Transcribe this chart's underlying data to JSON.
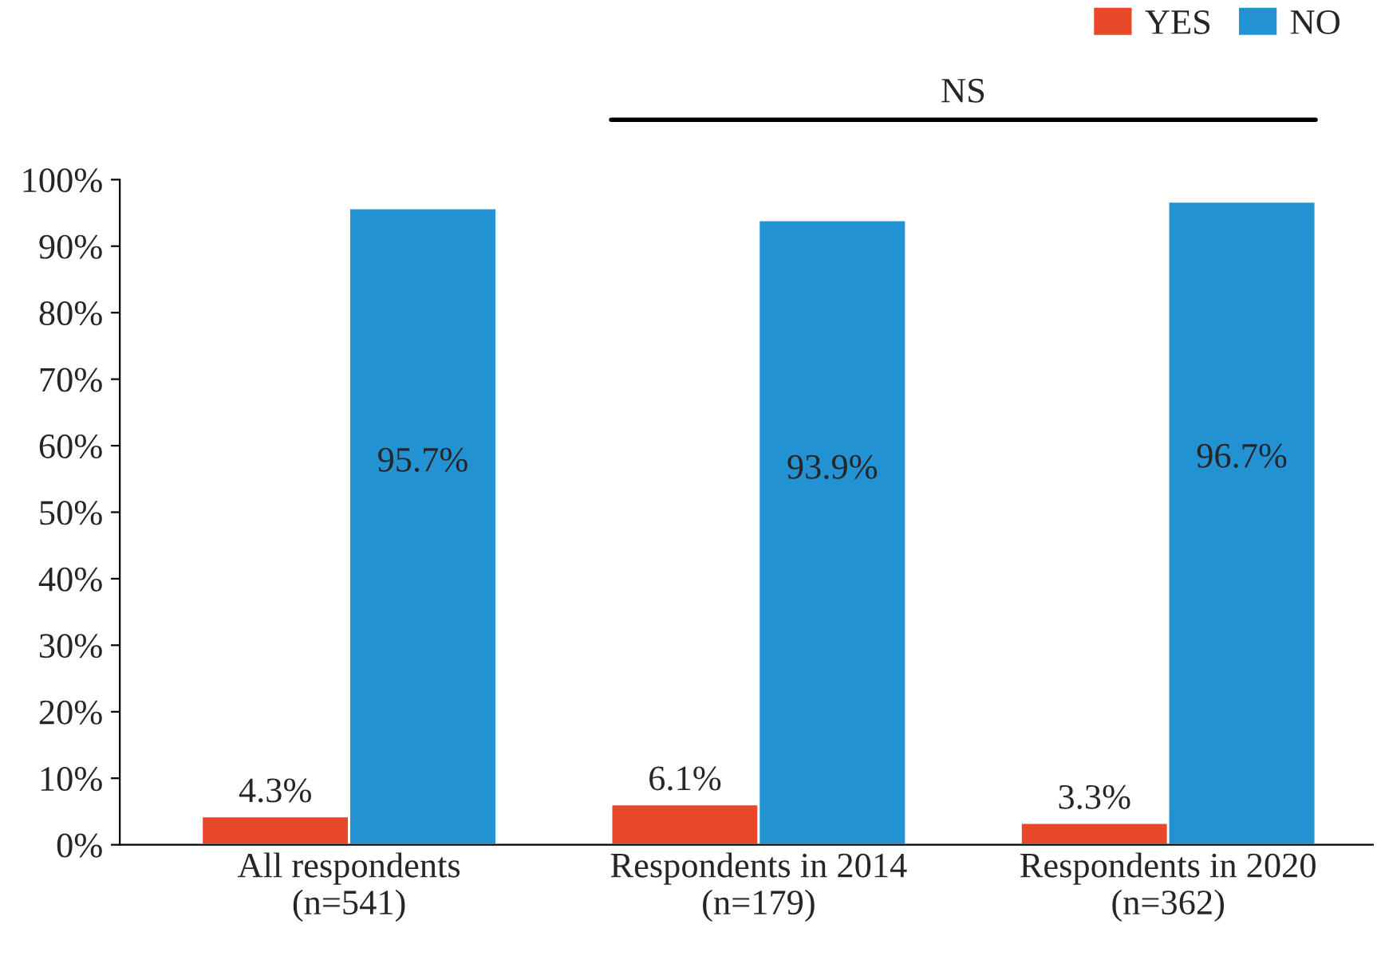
{
  "chart_data": {
    "type": "bar",
    "categories": [
      "All respondents\n(n=541)",
      "Respondents in 2014\n(n=179)",
      "Respondents in 2020\n(n=362)"
    ],
    "series": [
      {
        "name": "YES",
        "color": "#e8482a",
        "values": [
          4.3,
          6.1,
          3.3
        ],
        "value_labels": [
          "4.3%",
          "6.1%",
          "3.3%"
        ]
      },
      {
        "name": "NO",
        "color": "#2392d2",
        "values": [
          95.7,
          93.9,
          96.7
        ],
        "value_labels": [
          "95.7%",
          "93.9%",
          "96.7%"
        ]
      }
    ],
    "ylim": [
      0,
      100
    ],
    "yticks": [
      {
        "value": 0,
        "label": "0%"
      },
      {
        "value": 10,
        "label": "10%"
      },
      {
        "value": 20,
        "label": "20%"
      },
      {
        "value": 30,
        "label": "30%"
      },
      {
        "value": 40,
        "label": "40%"
      },
      {
        "value": 50,
        "label": "50%"
      },
      {
        "value": 60,
        "label": "60%"
      },
      {
        "value": 70,
        "label": "70%"
      },
      {
        "value": 80,
        "label": "80%"
      },
      {
        "value": 90,
        "label": "90%"
      },
      {
        "value": 100,
        "label": "100%"
      }
    ],
    "annotations": [
      "NS"
    ],
    "legend": "top right",
    "grid": false
  }
}
